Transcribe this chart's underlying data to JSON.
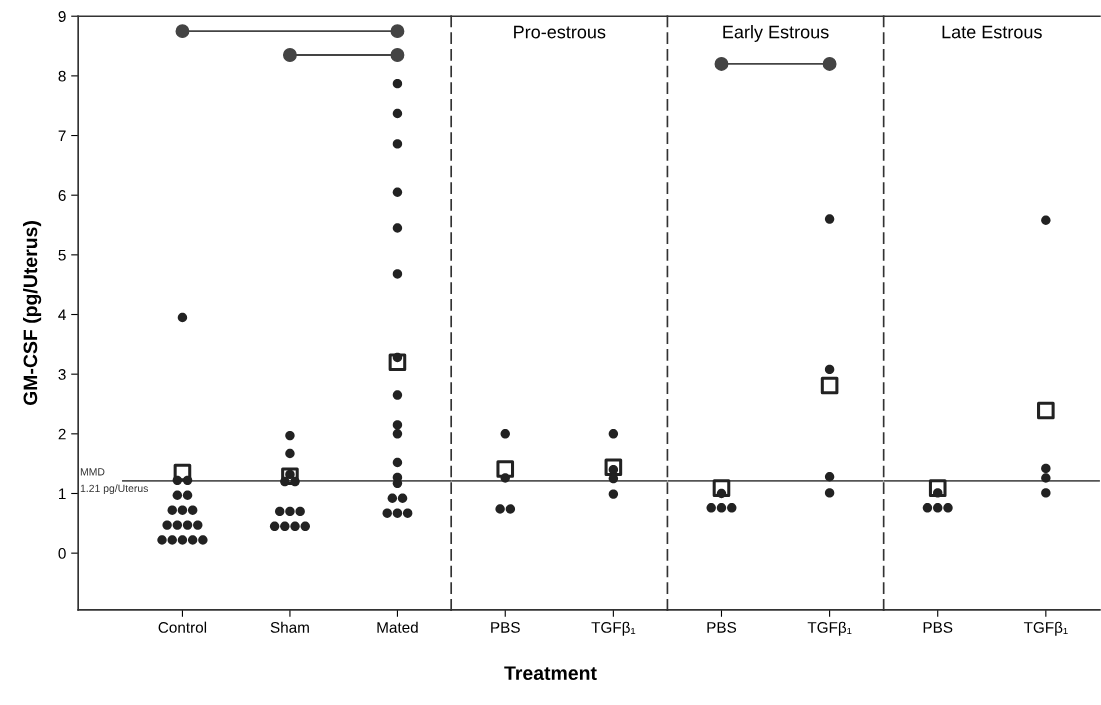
{
  "chart_data": [
    {
      "type": "scatter",
      "categories": [
        "Control",
        "Sham",
        "Mated"
      ],
      "ylabel": "GM-CSF (pg/Uterus)",
      "xlabel": "Treatment",
      "ylim": [
        -0.95,
        9
      ],
      "yticks": [
        0,
        1,
        2,
        3,
        4,
        5,
        6,
        7,
        8,
        9
      ],
      "marker": "circle",
      "series": [
        {
          "color": "#222222",
          "x": [
            "Control",
            "Control",
            "Control",
            "Control",
            "Control",
            "Control",
            "Control",
            "Control",
            "Control",
            "Control",
            "Control",
            "Control",
            "Control",
            "Control",
            "Control",
            "Control",
            "Control",
            "Sham",
            "Sham",
            "Sham",
            "Sham",
            "Sham",
            "Sham",
            "Sham",
            "Sham",
            "Sham",
            "Sham",
            "Sham",
            "Sham",
            "Mated",
            "Mated",
            "Mated",
            "Mated",
            "Mated",
            "Mated",
            "Mated",
            "Mated",
            "Mated",
            "Mated",
            "Mated",
            "Mated",
            "Mated",
            "Mated",
            "Mated",
            "Mated",
            "Mated",
            "Mated"
          ],
          "values": [
            3.95,
            1.22,
            1.22,
            0.97,
            0.97,
            0.72,
            0.72,
            0.72,
            0.47,
            0.47,
            0.47,
            0.47,
            0.22,
            0.22,
            0.22,
            0.22,
            0.22,
            1.97,
            1.67,
            1.32,
            1.2,
            1.2,
            0.7,
            0.7,
            0.7,
            0.45,
            0.45,
            0.45,
            0.45,
            7.87,
            7.37,
            6.86,
            6.05,
            5.45,
            4.68,
            3.28,
            2.65,
            2.15,
            2.0,
            1.52,
            1.27,
            1.17,
            0.92,
            0.92,
            0.67,
            0.67,
            0.67
          ]
        },
        {
          "marker": "square",
          "color": "#222222",
          "x": [
            "Control",
            "Sham",
            "Mated"
          ],
          "values": [
            1.35,
            1.29,
            3.2
          ]
        },
        {
          "type": "line",
          "color": "#444444",
          "x": [
            "Control",
            "Mated"
          ],
          "values": [
            8.75,
            8.75
          ]
        },
        {
          "type": "line",
          "color": "#444444",
          "x": [
            "Sham",
            "Mated"
          ],
          "values": [
            8.35,
            8.35
          ]
        }
      ],
      "ref_lines": [
        {
          "axis": "y",
          "value": 1.21,
          "label": "MMD\n1.21 pg/Uterus",
          "color": "#555555"
        }
      ]
    },
    {
      "type": "scatter",
      "title": "Pro-estrous",
      "categories": [
        "PBS",
        "TGFβ₁"
      ],
      "ylim": [
        -0.95,
        9
      ],
      "tick_labels": "x",
      "marker": "circle",
      "series": [
        {
          "color": "#222222",
          "x": [
            "PBS",
            "PBS",
            "PBS",
            "PBS",
            "TGFβ₁",
            "TGFβ₁",
            "TGFβ₁",
            "TGFβ₁"
          ],
          "values": [
            2.0,
            1.26,
            0.74,
            0.74,
            2.0,
            1.4,
            1.25,
            0.99
          ]
        },
        {
          "marker": "square",
          "color": "#222222",
          "x": [
            "PBS",
            "TGFβ₁"
          ],
          "values": [
            1.41,
            1.44
          ]
        }
      ],
      "ref_lines": [
        {
          "axis": "y",
          "value": 1.21,
          "color": "#555555"
        }
      ]
    },
    {
      "type": "scatter",
      "title": "Early Estrous",
      "categories": [
        "PBS",
        "TGFβ₁"
      ],
      "ylim": [
        -0.95,
        9
      ],
      "tick_labels": "x",
      "marker": "circle",
      "series": [
        {
          "color": "#222222",
          "x": [
            "PBS",
            "PBS",
            "PBS",
            "PBS",
            "TGFβ₁",
            "TGFβ₁",
            "TGFβ₁",
            "TGFβ₁"
          ],
          "values": [
            1.0,
            0.76,
            0.76,
            0.76,
            5.6,
            3.08,
            1.28,
            1.01
          ]
        },
        {
          "marker": "square",
          "color": "#222222",
          "x": [
            "PBS",
            "TGFβ₁"
          ],
          "values": [
            1.09,
            2.81
          ]
        },
        {
          "type": "line",
          "color": "#444444",
          "x": [
            "PBS",
            "TGFβ₁"
          ],
          "values": [
            8.2,
            8.2
          ]
        }
      ],
      "ref_lines": [
        {
          "axis": "y",
          "value": 1.21,
          "color": "#555555"
        }
      ]
    },
    {
      "type": "scatter",
      "title": "Late Estrous",
      "categories": [
        "PBS",
        "TGFβ₁"
      ],
      "ylim": [
        -0.95,
        9
      ],
      "tick_labels": "x",
      "marker": "circle",
      "series": [
        {
          "color": "#222222",
          "x": [
            "PBS",
            "PBS",
            "PBS",
            "PBS",
            "TGFβ₁",
            "TGFβ₁",
            "TGFβ₁",
            "TGFβ₁"
          ],
          "values": [
            1.01,
            0.76,
            0.76,
            0.76,
            5.58,
            1.42,
            1.26,
            1.01
          ]
        },
        {
          "marker": "square",
          "color": "#222222",
          "x": [
            "PBS",
            "TGFβ₁"
          ],
          "values": [
            1.09,
            2.39
          ]
        }
      ],
      "ref_lines": [
        {
          "axis": "y",
          "value": 1.21,
          "color": "#555555"
        }
      ]
    }
  ]
}
